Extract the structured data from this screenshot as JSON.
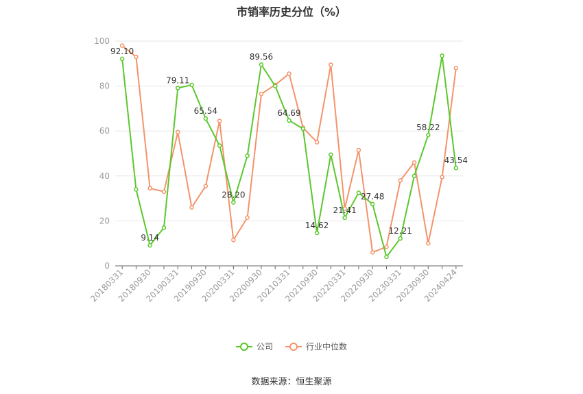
{
  "chart_data": {
    "type": "line",
    "title": "市销率历史分位（%）",
    "xlabel": "",
    "ylabel": "",
    "ylim": [
      0,
      100
    ],
    "yticks": [
      0,
      20,
      40,
      60,
      80,
      100
    ],
    "x": [
      "20180331",
      "20180630",
      "20180930",
      "20181231",
      "20190331",
      "20190630",
      "20190930",
      "20191231",
      "20200331",
      "20200630",
      "20200930",
      "20201231",
      "20210331",
      "20210630",
      "20210930",
      "20211231",
      "20220331",
      "20220630",
      "20220930",
      "20221231",
      "20230331",
      "20230630",
      "20230930",
      "20231231",
      "20240424"
    ],
    "xtick_labels": [
      "20180331",
      "20180930",
      "20190331",
      "20190930",
      "20200331",
      "20200930",
      "20210331",
      "20210930",
      "20220331",
      "20220930",
      "20230331",
      "20230930",
      "20240424"
    ],
    "series": [
      {
        "name": "公司",
        "color": "#5bc72c",
        "values": [
          92.1,
          34.0,
          9.14,
          17.0,
          79.11,
          80.5,
          65.54,
          53.5,
          28.2,
          49.0,
          89.56,
          80.0,
          64.69,
          61.0,
          14.62,
          49.5,
          21.41,
          32.5,
          27.48,
          4.0,
          12.21,
          40.0,
          58.22,
          93.5,
          43.54
        ],
        "labels": {
          "0": "92.10",
          "2": "9.14",
          "4": "79.11",
          "6": "65.54",
          "8": "28.20",
          "10": "89.56",
          "12": "64.69",
          "14": "14.62",
          "16": "21.41",
          "18": "27.48",
          "20": "12.21",
          "22": "58.22",
          "24": "43.54"
        }
      },
      {
        "name": "行业中位数",
        "color": "#f4936a",
        "values": [
          98.0,
          93.0,
          34.5,
          33.0,
          59.5,
          26.0,
          35.5,
          64.5,
          11.5,
          21.5,
          76.5,
          80.5,
          85.5,
          61.5,
          55.0,
          89.5,
          25.5,
          51.5,
          6.0,
          8.5,
          38.0,
          46.0,
          10.0,
          39.5,
          88.0
        ]
      }
    ],
    "grid": true,
    "legend": "bottom-center"
  },
  "source": "数据来源：恒生聚源"
}
